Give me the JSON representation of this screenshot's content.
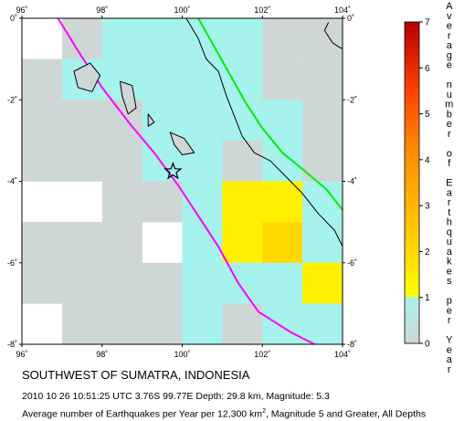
{
  "title": "SOUTHWEST OF SUMATRA, INDONESIA",
  "event": {
    "date": "2010 10 26",
    "time": "10:51:25 UTC",
    "latitude": "3.76S",
    "longitude": "99.77E",
    "depth_text": "Depth: 29.8 km,",
    "magnitude_text": "Magnitude: 5.3"
  },
  "stats": {
    "prefix": "Average number of Earthquakes per Year per 12,300 km",
    "superscript": "2",
    "suffix": ", Magnitude 5 and Greater, All Depths"
  },
  "map": {
    "lon_range": [
      96,
      104
    ],
    "lat_range": [
      -8,
      0
    ],
    "lon_ticks": [
      {
        "value": 96,
        "label": "96˚"
      },
      {
        "value": 98,
        "label": "98˚"
      },
      {
        "value": 100,
        "label": "100˚"
      },
      {
        "value": 102,
        "label": "102˚"
      },
      {
        "value": 104,
        "label": "104˚"
      }
    ],
    "lat_ticks": [
      {
        "value": 0,
        "label": "0˚"
      },
      {
        "value": -2,
        "label": "-2˚"
      },
      {
        "value": -4,
        "label": "-4˚"
      },
      {
        "value": -6,
        "label": "-6˚"
      },
      {
        "value": -8,
        "label": "-8˚"
      }
    ],
    "epicenter": {
      "lon": 99.77,
      "lat": -3.76
    },
    "colors": {
      "zero": "#cfd6d6",
      "low": "#a6f2ec",
      "mid": "#fff000",
      "mid_high": "#ffd800",
      "trench": "#ff00ff",
      "fault": "#00ee00",
      "coast": "#000000"
    },
    "grid_cell_deg": 1,
    "grid_rows": [
      [
        "n",
        "zero",
        "low",
        "low",
        "low",
        "low",
        "zero",
        "zero"
      ],
      [
        "zero",
        "low",
        "low",
        "low",
        "low",
        "low",
        "zero",
        "zero"
      ],
      [
        "zero",
        "zero",
        "zero",
        "low",
        "low",
        "low",
        "low",
        "zero"
      ],
      [
        "zero",
        "zero",
        "zero",
        "low",
        "low",
        "zero",
        "low",
        "zero"
      ],
      [
        "n",
        "n",
        "zero",
        "zero",
        "low",
        "mid",
        "mid",
        "low"
      ],
      [
        "zero",
        "zero",
        "zero",
        "n",
        "low",
        "mid",
        "mid_high",
        "low"
      ],
      [
        "zero",
        "zero",
        "zero",
        "zero",
        "low",
        "low",
        "low",
        "mid"
      ],
      [
        "n",
        "zero",
        "zero",
        "zero",
        "low",
        "zero",
        "low",
        "low"
      ]
    ]
  },
  "colorbar": {
    "min": 0,
    "max": 7,
    "labels": [
      "0",
      "1",
      "2",
      "3",
      "4",
      "5",
      "6",
      "7"
    ],
    "title_letters": [
      "A",
      "v",
      "e",
      "r",
      "a",
      "g",
      "e",
      "",
      "n",
      "u",
      "m",
      "b",
      "e",
      "r",
      "",
      "o",
      "f",
      "",
      "E",
      "a",
      "r",
      "t",
      "h",
      "q",
      "u",
      "a",
      "k",
      "e",
      "s",
      "",
      "p",
      "e",
      "r",
      "",
      "Y",
      "e",
      "a",
      "r"
    ]
  }
}
